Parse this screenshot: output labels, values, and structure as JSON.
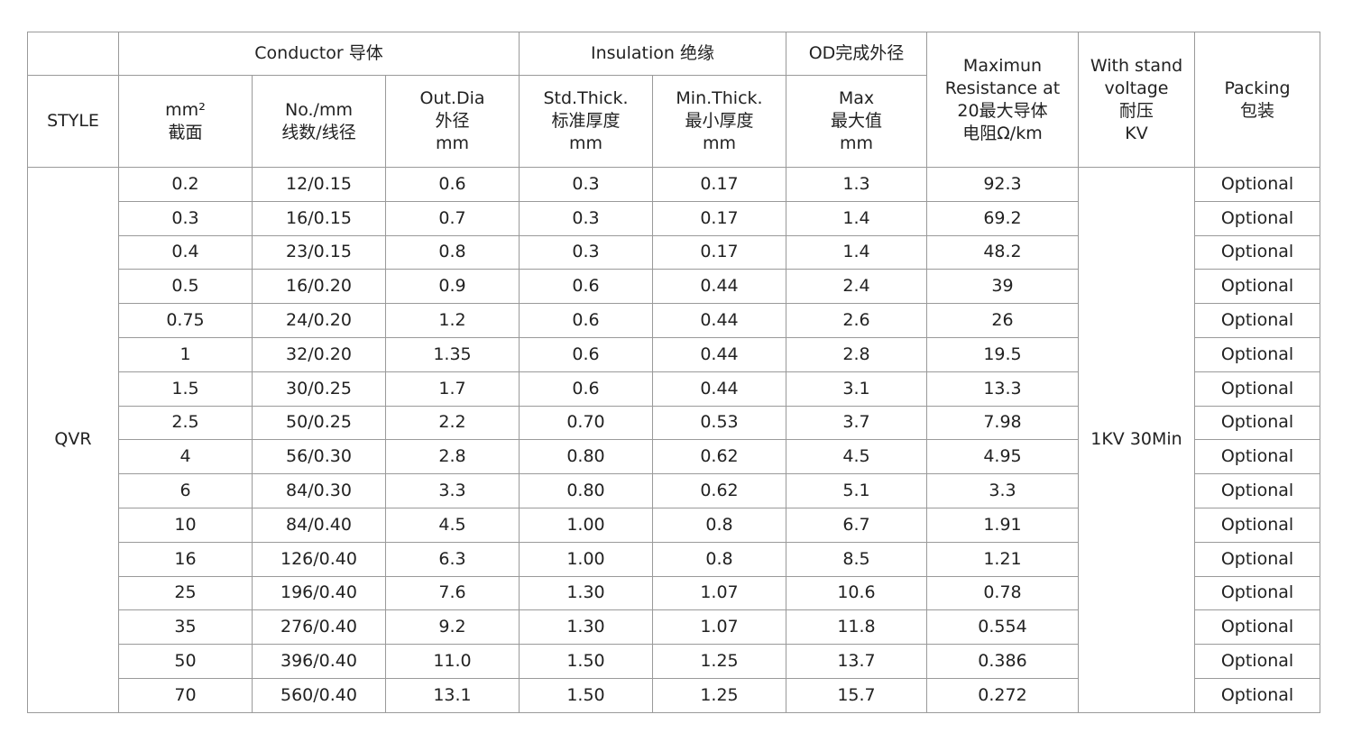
{
  "headers": {
    "style": "STYLE",
    "conductor": "Conductor 导体",
    "insulation": "Insulation 绝缘",
    "od": "OD完成外径",
    "resistance": "Maximun\nResistance at\n20最大导体\n电阻Ω/km",
    "voltage": "With stand\nvoltage\n耐压\nKV",
    "packing": "Packing\n包装",
    "area": "mm²\n截面",
    "strands": "No./mm\n线数/线径",
    "outdia": "Out.Dia\n外径\nmm",
    "std_thick": "Std.Thick.\n标准厚度\nmm",
    "min_thick": "Min.Thick.\n最小厚度\nmm",
    "od_max": "Max\n最大值\nmm"
  },
  "style_value": "QVR",
  "voltage_value": "1KV 30Min",
  "rows": [
    [
      "0.2",
      "12/0.15",
      "0.6",
      "0.3",
      "0.17",
      "1.3",
      "92.3",
      "Optional"
    ],
    [
      "0.3",
      "16/0.15",
      "0.7",
      "0.3",
      "0.17",
      "1.4",
      "69.2",
      "Optional"
    ],
    [
      "0.4",
      "23/0.15",
      "0.8",
      "0.3",
      "0.17",
      "1.4",
      "48.2",
      "Optional"
    ],
    [
      "0.5",
      "16/0.20",
      "0.9",
      "0.6",
      "0.44",
      "2.4",
      "39",
      "Optional"
    ],
    [
      "0.75",
      "24/0.20",
      "1.2",
      "0.6",
      "0.44",
      "2.6",
      "26",
      "Optional"
    ],
    [
      "1",
      "32/0.20",
      "1.35",
      "0.6",
      "0.44",
      "2.8",
      "19.5",
      "Optional"
    ],
    [
      "1.5",
      "30/0.25",
      "1.7",
      "0.6",
      "0.44",
      "3.1",
      "13.3",
      "Optional"
    ],
    [
      "2.5",
      "50/0.25",
      "2.2",
      "0.70",
      "0.53",
      "3.7",
      "7.98",
      "Optional"
    ],
    [
      "4",
      "56/0.30",
      "2.8",
      "0.80",
      "0.62",
      "4.5",
      "4.95",
      "Optional"
    ],
    [
      "6",
      "84/0.30",
      "3.3",
      "0.80",
      "0.62",
      "5.1",
      "3.3",
      "Optional"
    ],
    [
      "10",
      "84/0.40",
      "4.5",
      "1.00",
      "0.8",
      "6.7",
      "1.91",
      "Optional"
    ],
    [
      "16",
      "126/0.40",
      "6.3",
      "1.00",
      "0.8",
      "8.5",
      "1.21",
      "Optional"
    ],
    [
      "25",
      "196/0.40",
      "7.6",
      "1.30",
      "1.07",
      "10.6",
      "0.78",
      "Optional"
    ],
    [
      "35",
      "276/0.40",
      "9.2",
      "1.30",
      "1.07",
      "11.8",
      "0.554",
      "Optional"
    ],
    [
      "50",
      "396/0.40",
      "11.0",
      "1.50",
      "1.25",
      "13.7",
      "0.386",
      "Optional"
    ],
    [
      "70",
      "560/0.40",
      "13.1",
      "1.50",
      "1.25",
      "15.7",
      "0.272",
      "Optional"
    ]
  ]
}
